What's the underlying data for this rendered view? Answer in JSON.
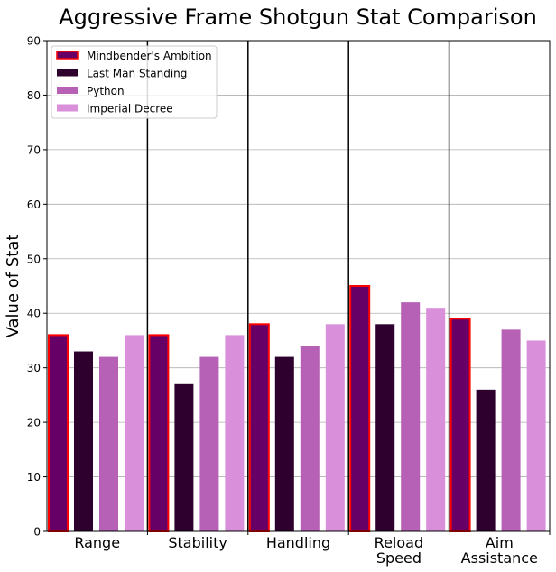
{
  "chart_data": {
    "type": "bar",
    "title": "Aggressive Frame Shotgun Stat Comparison",
    "xlabel": "",
    "ylabel": "Value of Stat",
    "ylim": [
      0,
      90
    ],
    "yticks": [
      0,
      10,
      20,
      30,
      40,
      50,
      60,
      70,
      80,
      90
    ],
    "grid": "horizontal",
    "legend_position": "top-left",
    "categories": [
      "Range",
      "Stability",
      "Handling",
      "Reload\nSpeed",
      "Aim\nAssistance"
    ],
    "series": [
      {
        "name": "Mindbender's Ambition",
        "values": [
          36,
          36,
          38,
          45,
          39
        ],
        "color": "#660066",
        "edge": "#ff0000"
      },
      {
        "name": "Last Man Standing",
        "values": [
          33,
          27,
          32,
          38,
          26
        ],
        "color": "#2d002d"
      },
      {
        "name": "Python",
        "values": [
          32,
          32,
          34,
          42,
          37
        ],
        "color": "#b660b6"
      },
      {
        "name": "Imperial Decree",
        "values": [
          36,
          36,
          38,
          41,
          35
        ],
        "color": "#d98fd9"
      }
    ]
  }
}
